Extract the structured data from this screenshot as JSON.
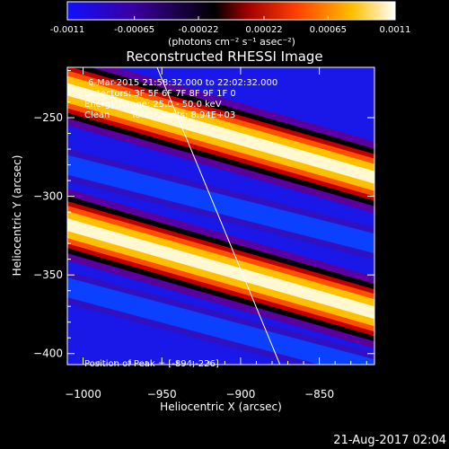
{
  "colorbar": {
    "tick_labels": [
      "-0.0011",
      "-0.00065",
      "-0.00022",
      "0.00022",
      "0.00065",
      "0.0011"
    ],
    "tick_values": [
      -0.0011,
      -0.00065,
      -0.00022,
      0.00022,
      0.00065,
      0.0011
    ],
    "range": [
      -0.0011,
      0.0011
    ],
    "colormap": [
      "#1010ff",
      "#3a00a0",
      "#000000",
      "#a00000",
      "#ff4000",
      "#ffc000",
      "#ffffff"
    ]
  },
  "image_annotations": {
    "line1": "6-Mar-2015 21:58:32.000 to 22:02:32.000",
    "line2": "Detectors: 3F 5F 6F 7F 8F 9F 1F 0",
    "line3": "Energy Range: 25.0 - 50.0 keV",
    "line4_left": "Clean",
    "line4_right": "Total counts: 8.94E+03",
    "peak": "Position of Peak = [-894,-226]"
  },
  "footer_timestamp": "21-Aug-2017 02:04",
  "chart_data": {
    "type": "heatmap",
    "title": "Reconstructed RHESSI Image",
    "colorbar_label": "(photons cm⁻² s⁻¹ asec⁻²)",
    "xlabel": "Heliocentric X (arcsec)",
    "ylabel": "Heliocentric Y (arcsec)",
    "xlim": [
      -1010,
      -815
    ],
    "ylim": [
      -407,
      -218
    ],
    "x_ticks": [
      -1000,
      -950,
      -900,
      -850
    ],
    "y_ticks": [
      -400,
      -350,
      -300,
      -250
    ],
    "limb_line": {
      "x": [
        -953,
        -875
      ],
      "y": [
        -218,
        -407
      ]
    },
    "bands": [
      {
        "kind": "positive",
        "y_at_left": -318,
        "y_at_right": -374
      },
      {
        "kind": "negative",
        "y_at_left": -280,
        "y_at_right": -330
      },
      {
        "kind": "negative",
        "y_at_left": -358,
        "y_at_right": -410
      },
      {
        "kind": "positive",
        "y_at_left": -232,
        "y_at_right": -288
      }
    ],
    "peak_position": [
      -894,
      -226
    ]
  }
}
